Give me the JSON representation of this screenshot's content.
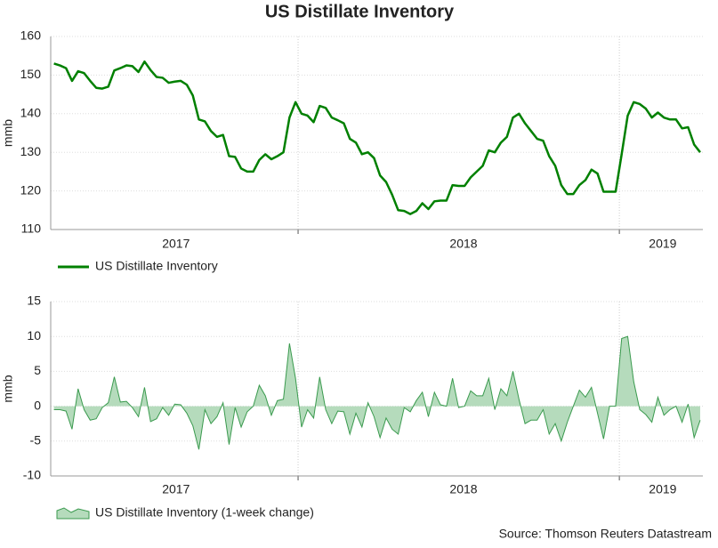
{
  "title": "US Distillate Inventory",
  "source": "Source: Thomson Reuters Datastream",
  "chart_data": [
    {
      "type": "line",
      "ylabel": "mmb",
      "x": [
        2017.24,
        2017.2588,
        2017.2776,
        2017.2964,
        2017.3152,
        2017.334,
        2017.3528,
        2017.3716,
        2017.3904,
        2017.4092,
        2017.428,
        2017.4468,
        2017.4656,
        2017.4844,
        2017.5032,
        2017.522,
        2017.5408,
        2017.5596,
        2017.5784,
        2017.5972,
        2017.616,
        2017.6348,
        2017.6536,
        2017.6724,
        2017.6912,
        2017.71,
        2017.7288,
        2017.7476,
        2017.7664,
        2017.7852,
        2017.804,
        2017.8228,
        2017.8416,
        2017.8604,
        2017.8792,
        2017.898,
        2017.9168,
        2017.9356,
        2017.9544,
        2017.9732,
        2017.992,
        2018.0108,
        2018.0296,
        2018.0484,
        2018.0672,
        2018.086,
        2018.1048,
        2018.1236,
        2018.1424,
        2018.1612,
        2018.18,
        2018.1988,
        2018.2176,
        2018.2364,
        2018.2552,
        2018.274,
        2018.2928,
        2018.3116,
        2018.3304,
        2018.3492,
        2018.368,
        2018.3868,
        2018.4056,
        2018.4244,
        2018.4432,
        2018.462,
        2018.4808,
        2018.4996,
        2018.5184,
        2018.5372,
        2018.556,
        2018.5748,
        2018.5936,
        2018.6124,
        2018.6312,
        2018.65,
        2018.6688,
        2018.6876,
        2018.7064,
        2018.7252,
        2018.744,
        2018.7628,
        2018.7816,
        2018.8004,
        2018.8192,
        2018.838,
        2018.8568,
        2018.8756,
        2018.8944,
        2018.9132,
        2018.932,
        2018.9508,
        2018.9696,
        2018.9884,
        2019.0072,
        2019.026,
        2019.0448,
        2019.0636,
        2019.0824,
        2019.1012,
        2019.12,
        2019.1388,
        2019.1576,
        2019.1764,
        2019.1952,
        2019.214,
        2019.2328,
        2019.2516
      ],
      "xlim": [
        2017.23,
        2019.26
      ],
      "xgrid": [
        2018,
        2019
      ],
      "xlabels": [
        {
          "value": 2017.62,
          "label": "2017"
        },
        {
          "value": 2018.515,
          "label": "2018"
        },
        {
          "value": 2019.135,
          "label": "2019"
        }
      ],
      "ylim": [
        110,
        160
      ],
      "yticks": [
        110,
        120,
        130,
        140,
        150,
        160
      ],
      "grid": true,
      "series": [
        {
          "name": "US Distillate Inventory",
          "color": "#008000",
          "values": [
            153,
            152.5,
            151.8,
            148.5,
            151,
            150.5,
            148.5,
            146.7,
            146.5,
            147,
            151.2,
            151.8,
            152.5,
            152.3,
            150.8,
            153.5,
            151.3,
            149.5,
            149.3,
            148,
            148.3,
            148.5,
            147.5,
            144.7,
            138.5,
            138,
            135.5,
            134,
            134.5,
            129,
            128.8,
            125.8,
            125,
            125,
            128,
            129.5,
            128.2,
            129,
            130,
            139,
            143,
            140,
            139.5,
            137.8,
            142,
            141.5,
            139,
            138.3,
            137.5,
            133.5,
            132.5,
            129.5,
            130,
            128.5,
            124,
            122.3,
            119,
            115,
            114.8,
            114,
            114.8,
            116.8,
            115.3,
            117.3,
            117.5,
            117.5,
            121.5,
            121.3,
            121.3,
            123.5,
            125,
            126.5,
            130.5,
            130,
            132.5,
            134,
            139,
            140,
            137.5,
            135.5,
            133.5,
            133,
            129,
            126.5,
            121.5,
            119.2,
            119.2,
            121.5,
            122.8,
            125.5,
            124.5,
            119.8,
            119.8,
            119.8,
            129.5,
            139.5,
            143,
            142.5,
            141.3,
            139,
            140.3,
            139,
            138.5,
            138.5,
            136.2,
            136.5,
            132,
            130
          ]
        }
      ]
    },
    {
      "type": "area",
      "ylabel": "mmb",
      "x": [
        2017.24,
        2017.2588,
        2017.2776,
        2017.2964,
        2017.3152,
        2017.334,
        2017.3528,
        2017.3716,
        2017.3904,
        2017.4092,
        2017.428,
        2017.4468,
        2017.4656,
        2017.4844,
        2017.5032,
        2017.522,
        2017.5408,
        2017.5596,
        2017.5784,
        2017.5972,
        2017.616,
        2017.6348,
        2017.6536,
        2017.6724,
        2017.6912,
        2017.71,
        2017.7288,
        2017.7476,
        2017.7664,
        2017.7852,
        2017.804,
        2017.8228,
        2017.8416,
        2017.8604,
        2017.8792,
        2017.898,
        2017.9168,
        2017.9356,
        2017.9544,
        2017.9732,
        2017.992,
        2018.0108,
        2018.0296,
        2018.0484,
        2018.0672,
        2018.086,
        2018.1048,
        2018.1236,
        2018.1424,
        2018.1612,
        2018.18,
        2018.1988,
        2018.2176,
        2018.2364,
        2018.2552,
        2018.274,
        2018.2928,
        2018.3116,
        2018.3304,
        2018.3492,
        2018.368,
        2018.3868,
        2018.4056,
        2018.4244,
        2018.4432,
        2018.462,
        2018.4808,
        2018.4996,
        2018.5184,
        2018.5372,
        2018.556,
        2018.5748,
        2018.5936,
        2018.6124,
        2018.6312,
        2018.65,
        2018.6688,
        2018.6876,
        2018.7064,
        2018.7252,
        2018.744,
        2018.7628,
        2018.7816,
        2018.8004,
        2018.8192,
        2018.838,
        2018.8568,
        2018.8756,
        2018.8944,
        2018.9132,
        2018.932,
        2018.9508,
        2018.9696,
        2018.9884,
        2019.0072,
        2019.026,
        2019.0448,
        2019.0636,
        2019.0824,
        2019.1012,
        2019.12,
        2019.1388,
        2019.1576,
        2019.1764,
        2019.1952,
        2019.214,
        2019.2328,
        2019.2516
      ],
      "xlim": [
        2017.23,
        2019.26
      ],
      "xgrid": [
        2018,
        2019
      ],
      "xlabels": [
        {
          "value": 2017.62,
          "label": "2017"
        },
        {
          "value": 2018.515,
          "label": "2018"
        },
        {
          "value": 2019.135,
          "label": "2019"
        }
      ],
      "ylim": [
        -10,
        15
      ],
      "yticks": [
        -10,
        -5,
        0,
        5,
        10,
        15
      ],
      "grid": true,
      "series": [
        {
          "name": "US Distillate Inventory (1-week change)",
          "color": "#3a9a4e",
          "fill_color": "#b5dbbc",
          "values": [
            -0.5,
            -0.5,
            -0.7,
            -3.3,
            2.5,
            -0.5,
            -2,
            -1.8,
            -0.2,
            0.5,
            4.2,
            0.6,
            0.7,
            -0.2,
            -1.5,
            2.7,
            -2.2,
            -1.8,
            -0.2,
            -1.3,
            0.3,
            0.2,
            -1,
            -2.8,
            -6.2,
            -0.5,
            -2.5,
            -1.5,
            0.5,
            -5.5,
            -0.2,
            -3,
            -0.8,
            0,
            3,
            1.5,
            -1.3,
            0.8,
            1,
            9,
            4,
            -3,
            -0.5,
            -1.7,
            4.2,
            -0.5,
            -2.5,
            -0.7,
            -0.8,
            -4,
            -1,
            -3,
            0.5,
            -1.5,
            -4.5,
            -1.7,
            -3.3,
            -4,
            -0.2,
            -0.8,
            0.8,
            2,
            -1.5,
            2,
            0.2,
            0,
            4,
            -0.2,
            0,
            2.2,
            1.5,
            1.5,
            4,
            -0.5,
            2.5,
            1.5,
            5,
            1,
            -2.5,
            -2,
            -2,
            -0.5,
            -4,
            -2.5,
            -5,
            -2.3,
            0,
            2.3,
            1.3,
            2.7,
            -1,
            -4.7,
            0,
            0,
            9.7,
            10,
            3.5,
            -0.5,
            -1.2,
            -2.3,
            1.3,
            -1.3,
            -0.5,
            0,
            -2.3,
            0.3,
            -4.5,
            -2
          ]
        }
      ]
    }
  ]
}
